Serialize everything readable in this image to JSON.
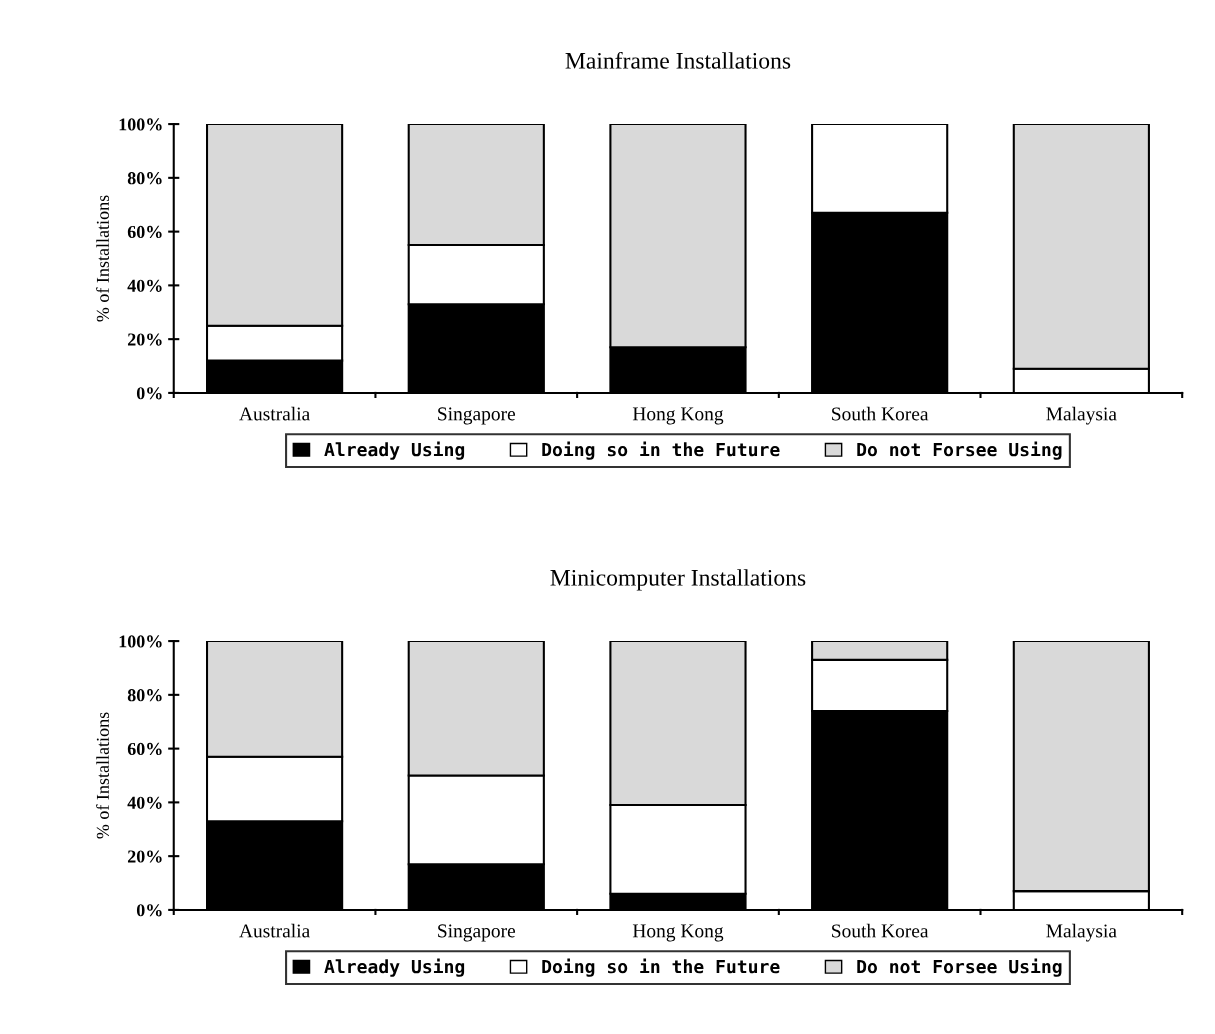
{
  "chart_data": [
    {
      "type": "bar",
      "stacked": true,
      "title": "Mainframe Installations",
      "ylabel": "% of Installations",
      "categories": [
        "Australia",
        "Singapore",
        "Hong Kong",
        "South Korea",
        "Malaysia"
      ],
      "series": [
        {
          "name": "Already Using",
          "color": "#000000",
          "values": [
            12,
            33,
            17,
            67,
            0
          ]
        },
        {
          "name": "Doing so in the Future",
          "color": "#ffffff",
          "values": [
            13,
            22,
            0,
            33,
            9
          ]
        },
        {
          "name": "Do not Forsee Using",
          "color": "#d9d9d9",
          "values": [
            75,
            45,
            83,
            0,
            91
          ]
        }
      ],
      "ylim": [
        0,
        100
      ],
      "yticks": [
        {
          "value": 0,
          "label": "0%"
        },
        {
          "value": 20,
          "label": "20%"
        },
        {
          "value": 40,
          "label": "40%"
        },
        {
          "value": 60,
          "label": "60%"
        },
        {
          "value": 80,
          "label": "80%"
        },
        {
          "value": 100,
          "label": "100%"
        }
      ],
      "grid": false,
      "legend": "bottom"
    },
    {
      "type": "bar",
      "stacked": true,
      "title": "Minicomputer Installations",
      "ylabel": "% of Installations",
      "categories": [
        "Australia",
        "Singapore",
        "Hong Kong",
        "South Korea",
        "Malaysia"
      ],
      "series": [
        {
          "name": "Already Using",
          "color": "#000000",
          "values": [
            33,
            17,
            6,
            74,
            0
          ]
        },
        {
          "name": "Doing so in the Future",
          "color": "#ffffff",
          "values": [
            24,
            33,
            33,
            19,
            7
          ]
        },
        {
          "name": "Do not Forsee Using",
          "color": "#d9d9d9",
          "values": [
            43,
            50,
            61,
            7,
            93
          ]
        }
      ],
      "ylim": [
        0,
        100
      ],
      "yticks": [
        {
          "value": 0,
          "label": "0%"
        },
        {
          "value": 20,
          "label": "20%"
        },
        {
          "value": 40,
          "label": "40%"
        },
        {
          "value": 60,
          "label": "60%"
        },
        {
          "value": 80,
          "label": "80%"
        },
        {
          "value": 100,
          "label": "100%"
        }
      ],
      "grid": false,
      "legend": "bottom"
    }
  ]
}
